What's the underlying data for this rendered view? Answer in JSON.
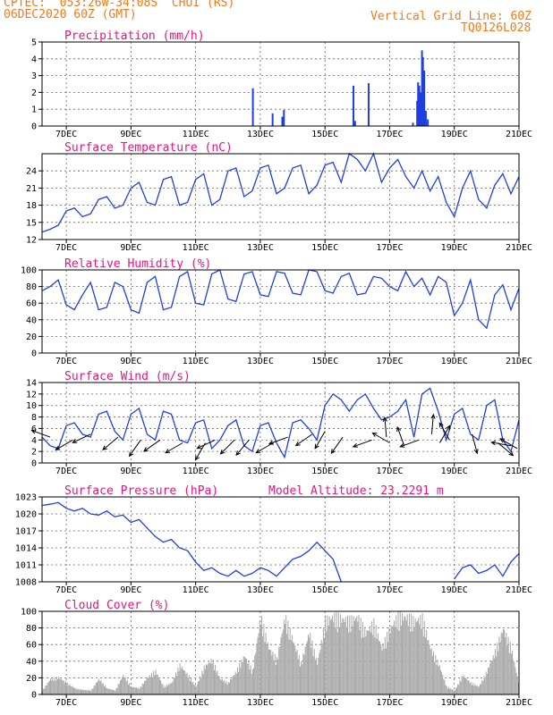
{
  "header": {
    "line1": "CPTEC:  053:26W-34:08S  CHUI (RS)",
    "line2": "06DEC2020 60Z (GMT)",
    "right1": "Vertical Grid Line: 60Z",
    "right2": "TQ0126L028"
  },
  "colors": {
    "header": "#f07a1a",
    "title": "#e4157f",
    "line": "#1f3fe0",
    "cloud": "#a8a8a8",
    "grid": "#666666"
  },
  "x_axis": {
    "tick_labels": [
      "7DEC",
      "9DEC",
      "11DEC",
      "13DEC",
      "15DEC",
      "17DEC",
      "19DEC",
      "21DEC"
    ],
    "tick_days": [
      7,
      9,
      11,
      13,
      15,
      17,
      19,
      21
    ],
    "range_days": [
      6.25,
      21.0
    ]
  },
  "chart_data": [
    {
      "type": "bar",
      "title": "Precipitation  (mm/h)",
      "ylim": [
        0,
        5
      ],
      "yticks": [
        "0",
        "1",
        "2",
        "3",
        "4",
        "5"
      ],
      "grid": true,
      "points": [
        {
          "day": 12.77,
          "v": 2.25
        },
        {
          "day": 13.38,
          "v": 0.75
        },
        {
          "day": 13.68,
          "v": 0.55
        },
        {
          "day": 13.73,
          "v": 0.95
        },
        {
          "day": 15.88,
          "v": 2.4
        },
        {
          "day": 15.93,
          "v": 0.3
        },
        {
          "day": 16.35,
          "v": 2.55
        },
        {
          "day": 17.72,
          "v": 0.2
        },
        {
          "day": 17.85,
          "v": 1.5
        },
        {
          "day": 17.88,
          "v": 2.6
        },
        {
          "day": 17.92,
          "v": 2.4
        },
        {
          "day": 17.96,
          "v": 2.0
        },
        {
          "day": 18.0,
          "v": 4.5
        },
        {
          "day": 18.03,
          "v": 4.1
        },
        {
          "day": 18.07,
          "v": 3.3
        },
        {
          "day": 18.12,
          "v": 0.9
        },
        {
          "day": 18.18,
          "v": 0.4
        }
      ]
    },
    {
      "type": "line",
      "title": "Surface Temperature (nC)",
      "ylim": [
        12,
        27
      ],
      "yticks": [
        "12",
        "15",
        "18",
        "21",
        "24"
      ],
      "tickvals": [
        12,
        15,
        18,
        21,
        24
      ],
      "grid": true,
      "x": [
        6.25,
        6.5,
        6.75,
        7.0,
        7.25,
        7.5,
        7.75,
        8.0,
        8.25,
        8.5,
        8.75,
        9.0,
        9.25,
        9.5,
        9.75,
        10.0,
        10.25,
        10.5,
        10.75,
        11.0,
        11.25,
        11.5,
        11.75,
        12.0,
        12.25,
        12.5,
        12.75,
        13.0,
        13.25,
        13.5,
        13.75,
        14.0,
        14.25,
        14.5,
        14.75,
        15.0,
        15.25,
        15.5,
        15.75,
        16.0,
        16.25,
        16.5,
        16.75,
        17.0,
        17.25,
        17.5,
        17.75,
        18.0,
        18.25,
        18.5,
        18.75,
        19.0,
        19.25,
        19.5,
        19.75,
        20.0,
        20.25,
        20.5,
        20.75,
        21.0
      ],
      "y": [
        13.3,
        13.8,
        14.5,
        17.0,
        17.5,
        16.0,
        16.5,
        19.0,
        19.5,
        17.5,
        18.0,
        21.0,
        22.0,
        18.5,
        18.0,
        22.5,
        23.0,
        18.0,
        18.5,
        22.5,
        23.5,
        18.0,
        19.0,
        24.0,
        24.5,
        19.5,
        20.5,
        24.5,
        25.0,
        20.0,
        21.0,
        24.5,
        25.0,
        20.0,
        21.5,
        25.0,
        25.5,
        22.0,
        27.0,
        26.0,
        24.0,
        27.0,
        22.0,
        24.5,
        26.0,
        23.0,
        21.0,
        24.0,
        20.5,
        23.0,
        18.5,
        16.0,
        21.0,
        24.0,
        19.0,
        17.5,
        21.5,
        23.5,
        20.0,
        23.0
      ]
    },
    {
      "type": "line",
      "title": "Relative Humidity (%)",
      "ylim": [
        0,
        100
      ],
      "yticks": [
        "0",
        "20",
        "40",
        "60",
        "80",
        "100"
      ],
      "tickvals": [
        0,
        20,
        40,
        60,
        80,
        100
      ],
      "grid": true,
      "x": [
        6.25,
        6.5,
        6.75,
        7.0,
        7.25,
        7.5,
        7.75,
        8.0,
        8.25,
        8.5,
        8.75,
        9.0,
        9.25,
        9.5,
        9.75,
        10.0,
        10.25,
        10.5,
        10.75,
        11.0,
        11.25,
        11.5,
        11.75,
        12.0,
        12.25,
        12.5,
        12.75,
        13.0,
        13.25,
        13.5,
        13.75,
        14.0,
        14.25,
        14.5,
        14.75,
        15.0,
        15.25,
        15.5,
        15.75,
        16.0,
        16.25,
        16.5,
        16.75,
        17.0,
        17.25,
        17.5,
        17.75,
        18.0,
        18.25,
        18.5,
        18.75,
        19.0,
        19.25,
        19.5,
        19.75,
        20.0,
        20.25,
        20.5,
        20.75,
        21.0
      ],
      "y": [
        75,
        80,
        88,
        58,
        52,
        70,
        85,
        52,
        55,
        85,
        80,
        52,
        48,
        85,
        92,
        52,
        55,
        92,
        98,
        60,
        58,
        95,
        100,
        65,
        62,
        95,
        98,
        70,
        68,
        98,
        96,
        72,
        70,
        100,
        98,
        75,
        72,
        92,
        96,
        70,
        72,
        92,
        90,
        80,
        75,
        98,
        80,
        90,
        70,
        92,
        85,
        45,
        60,
        88,
        40,
        30,
        70,
        82,
        52,
        78
      ]
    },
    {
      "type": "line",
      "title": "Surface Wind  (m/s)",
      "ylim": [
        0,
        14
      ],
      "yticks": [
        "0",
        "2",
        "4",
        "6",
        "8",
        "10",
        "12",
        "14"
      ],
      "tickvals": [
        0,
        2,
        4,
        6,
        8,
        10,
        12,
        14
      ],
      "grid": true,
      "x": [
        6.25,
        6.5,
        6.75,
        7.0,
        7.25,
        7.5,
        7.75,
        8.0,
        8.25,
        8.5,
        8.75,
        9.0,
        9.25,
        9.5,
        9.75,
        10.0,
        10.25,
        10.5,
        10.75,
        11.0,
        11.25,
        11.5,
        11.75,
        12.0,
        12.25,
        12.5,
        12.75,
        13.0,
        13.25,
        13.5,
        13.75,
        14.0,
        14.25,
        14.5,
        14.75,
        15.0,
        15.25,
        15.5,
        15.75,
        16.0,
        16.25,
        16.5,
        16.75,
        17.0,
        17.25,
        17.5,
        17.75,
        18.0,
        18.25,
        18.5,
        18.75,
        19.0,
        19.25,
        19.5,
        19.75,
        20.0,
        20.25,
        20.5,
        20.75,
        21.0
      ],
      "y": [
        4.5,
        3.0,
        2.5,
        6.5,
        7.0,
        5.0,
        4.5,
        8.5,
        9.0,
        5.5,
        4.0,
        8.5,
        9.5,
        5.0,
        4.0,
        9.0,
        8.5,
        4.0,
        3.5,
        7.0,
        7.5,
        2.5,
        4.0,
        6.5,
        7.5,
        3.0,
        2.0,
        6.5,
        7.0,
        3.5,
        1.0,
        7.0,
        7.5,
        6.0,
        4.0,
        10.0,
        12.0,
        11.0,
        9.0,
        11.0,
        12.0,
        9.5,
        7.5,
        8.0,
        9.0,
        11.0,
        4.5,
        12.0,
        13.0,
        9.0,
        4.0,
        8.5,
        9.5,
        5.0,
        4.0,
        10.0,
        11.0,
        4.0,
        2.0,
        7.5
      ],
      "arrows": [
        {
          "day": 6.5,
          "s": 4.5,
          "a": 160
        },
        {
          "day": 7.2,
          "s": 4.0,
          "a": 210
        },
        {
          "day": 7.75,
          "s": 5.0,
          "a": 205
        },
        {
          "day": 8.6,
          "s": 4.5,
          "a": 220
        },
        {
          "day": 9.3,
          "s": 4.0,
          "a": 235
        },
        {
          "day": 9.9,
          "s": 4.0,
          "a": 215
        },
        {
          "day": 10.6,
          "s": 3.5,
          "a": 210
        },
        {
          "day": 11.3,
          "s": 3.5,
          "a": 240
        },
        {
          "day": 11.6,
          "s": 4.0,
          "a": 205
        },
        {
          "day": 12.2,
          "s": 4.0,
          "a": 225
        },
        {
          "day": 12.65,
          "s": 4.0,
          "a": 230
        },
        {
          "day": 13.4,
          "s": 3.5,
          "a": 210
        },
        {
          "day": 13.85,
          "s": 4.5,
          "a": 200
        },
        {
          "day": 14.6,
          "s": 5.0,
          "a": 215
        },
        {
          "day": 15.0,
          "s": 5.5,
          "a": 240
        },
        {
          "day": 15.55,
          "s": 4.5,
          "a": 235
        },
        {
          "day": 16.45,
          "s": 4.0,
          "a": 200
        },
        {
          "day": 16.9,
          "s": 4.5,
          "a": 95
        },
        {
          "day": 17.0,
          "s": 3.5,
          "a": 150
        },
        {
          "day": 17.45,
          "s": 3.0,
          "a": 110
        },
        {
          "day": 17.9,
          "s": 4.0,
          "a": 200
        },
        {
          "day": 18.3,
          "s": 5.0,
          "a": 85
        },
        {
          "day": 18.55,
          "s": 3.5,
          "a": 60
        },
        {
          "day": 18.85,
          "s": 4.0,
          "a": 120
        },
        {
          "day": 19.55,
          "s": 5.0,
          "a": 285
        },
        {
          "day": 20.35,
          "s": 3.5,
          "a": 320
        },
        {
          "day": 20.75,
          "s": 3.0,
          "a": 170
        },
        {
          "day": 20.95,
          "s": 2.5,
          "a": 150
        }
      ]
    },
    {
      "type": "line",
      "title": "Surface Pressure (hPa)",
      "annotation": "Model Altitude: 23.2291  m",
      "ylim": [
        1008,
        1023
      ],
      "yticks": [
        "1008",
        "1011",
        "1014",
        "1017",
        "1020",
        "1023"
      ],
      "tickvals": [
        1008,
        1011,
        1014,
        1017,
        1020,
        1023
      ],
      "grid": true,
      "segments": [
        {
          "x": [
            6.25,
            6.5,
            6.75,
            7.0,
            7.25,
            7.5,
            7.75,
            8.0,
            8.25,
            8.5,
            8.75,
            9.0,
            9.25,
            9.5,
            9.75,
            10.0,
            10.25,
            10.5,
            10.75,
            11.0,
            11.25,
            11.5,
            11.75,
            12.0,
            12.25,
            12.5,
            12.75,
            13.0,
            13.25,
            13.5,
            13.75,
            14.0,
            14.25,
            14.5,
            14.75,
            15.0,
            15.25,
            15.5
          ],
          "y": [
            1021.5,
            1021.7,
            1022.0,
            1021.0,
            1020.5,
            1021.0,
            1020.0,
            1019.8,
            1020.5,
            1019.5,
            1019.8,
            1018.5,
            1019.0,
            1017.5,
            1016.0,
            1015.0,
            1015.5,
            1014.0,
            1013.5,
            1011.5,
            1010.0,
            1010.5,
            1009.5,
            1009.0,
            1010.0,
            1009.0,
            1009.5,
            1010.5,
            1010.0,
            1009.0,
            1010.5,
            1012.0,
            1012.5,
            1013.5,
            1015.0,
            1013.5,
            1012.0,
            1008.0
          ]
        },
        {
          "x": [
            19.0,
            19.25,
            19.5,
            19.75,
            20.0,
            20.25,
            20.5,
            20.75,
            21.0
          ],
          "y": [
            1008.5,
            1010.5,
            1011.0,
            1009.5,
            1010.0,
            1011.0,
            1009.0,
            1011.5,
            1013.0
          ]
        }
      ]
    },
    {
      "type": "bar",
      "title": "Cloud Cover (%)",
      "ylim": [
        0,
        100
      ],
      "yticks": [
        "0",
        "20",
        "40",
        "60",
        "80",
        "100"
      ],
      "tickvals": [
        0,
        20,
        40,
        60,
        80,
        100
      ],
      "grid": true,
      "x": [
        6.25,
        6.5,
        6.75,
        7.0,
        7.25,
        7.5,
        7.75,
        8.0,
        8.25,
        8.5,
        8.75,
        9.0,
        9.25,
        9.5,
        9.75,
        10.0,
        10.25,
        10.5,
        10.75,
        11.0,
        11.25,
        11.5,
        11.75,
        12.0,
        12.25,
        12.5,
        12.75,
        13.0,
        13.25,
        13.5,
        13.75,
        14.0,
        14.25,
        14.5,
        14.75,
        15.0,
        15.25,
        15.5,
        15.75,
        16.0,
        16.25,
        16.5,
        16.75,
        17.0,
        17.25,
        17.5,
        17.75,
        18.0,
        18.25,
        18.5,
        18.75,
        19.0,
        19.25,
        19.5,
        19.75,
        20.0,
        20.25,
        20.5,
        20.75,
        21.0
      ],
      "y": [
        5,
        20,
        22,
        15,
        8,
        6,
        5,
        20,
        8,
        5,
        25,
        10,
        8,
        22,
        30,
        10,
        15,
        38,
        25,
        10,
        35,
        45,
        20,
        15,
        30,
        50,
        30,
        100,
        60,
        45,
        100,
        70,
        40,
        80,
        40,
        95,
        100,
        98,
        95,
        100,
        80,
        92,
        60,
        85,
        100,
        100,
        95,
        98,
        60,
        40,
        10,
        5,
        25,
        15,
        10,
        30,
        55,
        85,
        60,
        10
      ]
    }
  ]
}
